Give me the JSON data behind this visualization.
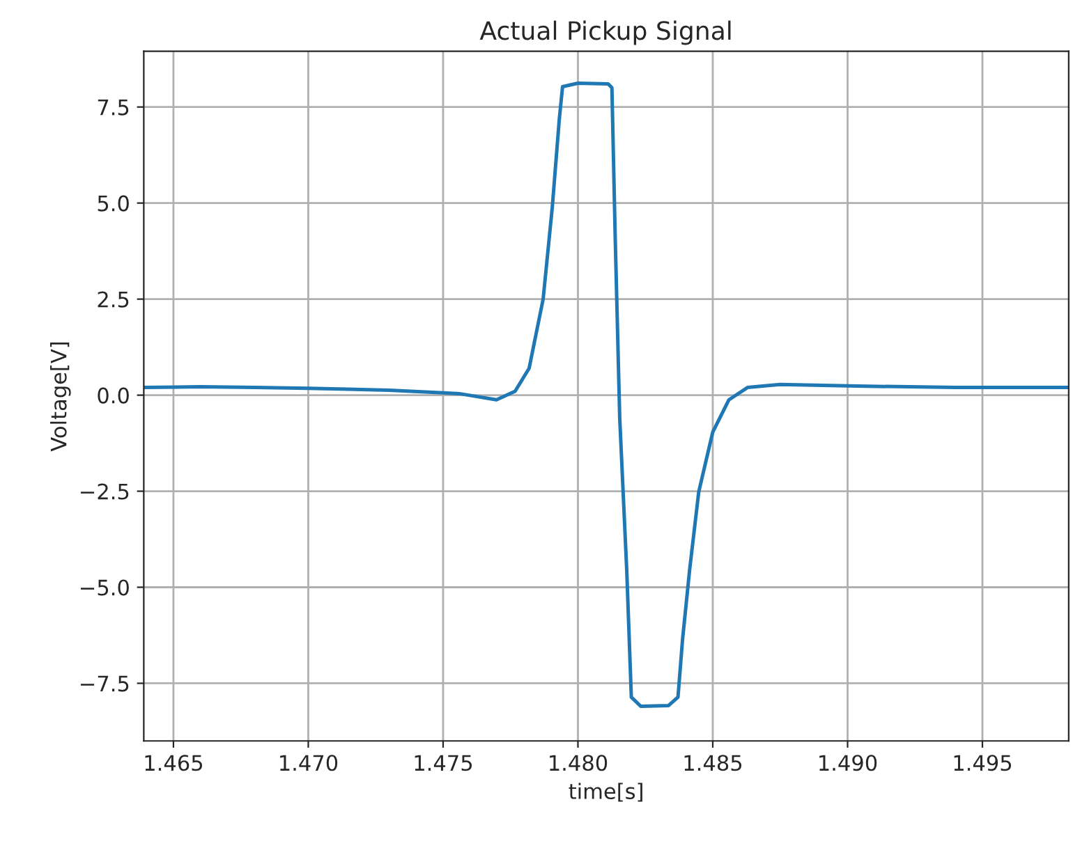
{
  "chart_data": {
    "type": "line",
    "title": "Actual Pickup Signal",
    "xlabel": "time[s]",
    "ylabel": "Voltage[V]",
    "series": [
      {
        "color": "#1f77b4",
        "x": [
          1.4639,
          1.466,
          1.468,
          1.47,
          1.473,
          1.475,
          1.4756,
          1.47698,
          1.47767,
          1.47819,
          1.47871,
          1.47905,
          1.47931,
          1.47943,
          1.48,
          1.48112,
          1.48126,
          1.48138,
          1.48155,
          1.48181,
          1.48198,
          1.48233,
          1.48336,
          1.48371,
          1.48388,
          1.48414,
          1.48448,
          1.485,
          1.4856,
          1.48629,
          1.4875,
          1.49,
          1.494,
          1.4982
        ],
        "values": [
          0.2,
          0.22,
          0.2,
          0.18,
          0.13,
          0.06,
          0.04,
          -0.12,
          0.1,
          0.7,
          2.5,
          4.9,
          7.19,
          8.03,
          8.12,
          8.1,
          8.0,
          4.18,
          -0.6,
          -4.56,
          -7.86,
          -8.1,
          -8.08,
          -7.86,
          -6.36,
          -4.56,
          -2.52,
          -0.96,
          -0.12,
          0.2,
          0.28,
          0.24,
          0.2,
          0.2
        ]
      }
    ],
    "xlim": [
      1.4639,
      1.4982
    ],
    "xticks": [
      {
        "value": 1.465,
        "label": "1.465"
      },
      {
        "value": 1.47,
        "label": "1.470"
      },
      {
        "value": 1.475,
        "label": "1.475"
      },
      {
        "value": 1.48,
        "label": "1.480"
      },
      {
        "value": 1.485,
        "label": "1.485"
      },
      {
        "value": 1.49,
        "label": "1.490"
      },
      {
        "value": 1.495,
        "label": "1.495"
      }
    ],
    "ylim": [
      -9.0,
      8.95
    ],
    "yticks": [
      {
        "value": -7.5,
        "label": "−7.5"
      },
      {
        "value": -5,
        "label": "−5.0"
      },
      {
        "value": -2.5,
        "label": "−2.5"
      },
      {
        "value": 0,
        "label": "0.0"
      },
      {
        "value": 2.5,
        "label": "2.5"
      },
      {
        "value": 5,
        "label": "5.0"
      },
      {
        "value": 7.5,
        "label": "7.5"
      }
    ],
    "grid": true
  }
}
